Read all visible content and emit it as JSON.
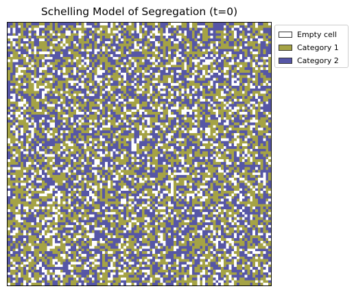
{
  "chart_data": {
    "type": "heatmap",
    "title": "Schelling Model of Segregation (t=0)",
    "xlabel": "",
    "ylabel": "",
    "axes_visible": false,
    "grid": false,
    "legend_placement": "outside-upper-right",
    "grid_size": [
      100,
      100
    ],
    "categories": [
      {
        "label": "Empty cell",
        "value": 0,
        "color": "#ffffff",
        "approx_share": 0.2
      },
      {
        "label": "Category 1",
        "value": 1,
        "color": "#a5a345",
        "approx_share": 0.4
      },
      {
        "label": "Category 2",
        "value": 2,
        "color": "#5656a6",
        "approx_share": 0.4
      }
    ],
    "distribution": "random, unsegregated (t=0)"
  }
}
